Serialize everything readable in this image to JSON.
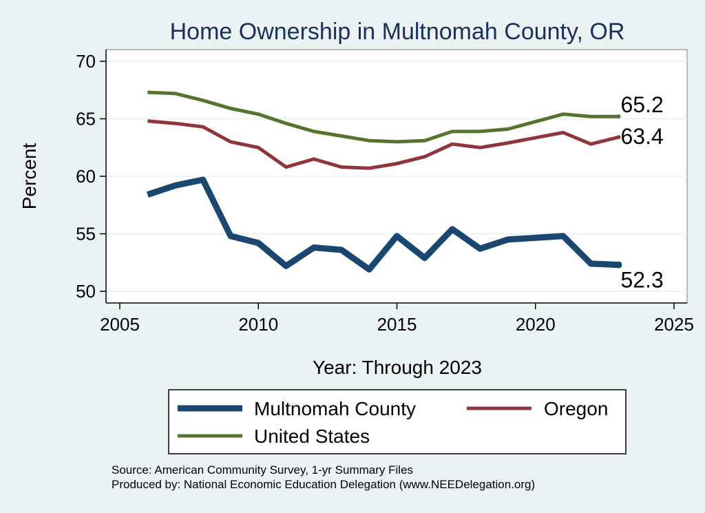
{
  "chart_data": {
    "type": "line",
    "title": "Home Ownership in Multnomah County, OR",
    "xlabel": "Year: Through 2023",
    "ylabel": "Percent",
    "xlim": [
      2005,
      2025
    ],
    "ylim": [
      49.5,
      70.8
    ],
    "xticks": [
      2005,
      2010,
      2015,
      2020,
      2025
    ],
    "yticks": [
      50,
      55,
      60,
      65,
      70
    ],
    "grid": true,
    "legend_position": "bottom",
    "colors": {
      "background": "#eaf2f3",
      "plot_background": "#ffffff",
      "grid": "#eaf2f3",
      "title": "#1a2f59",
      "text": "#000000"
    },
    "series": [
      {
        "name": "Multnomah County",
        "color": "#1a476f",
        "width": 9,
        "x": [
          2006,
          2007,
          2008,
          2009,
          2010,
          2011,
          2012,
          2013,
          2014,
          2015,
          2016,
          2017,
          2018,
          2019,
          2021,
          2022,
          2023
        ],
        "y": [
          58.4,
          59.2,
          59.7,
          54.8,
          54.2,
          52.2,
          53.8,
          53.6,
          51.9,
          54.8,
          52.9,
          55.4,
          53.7,
          54.5,
          54.8,
          52.4,
          52.3
        ],
        "end_label": "52.3"
      },
      {
        "name": "Oregon",
        "color": "#90353b",
        "width": 5,
        "x": [
          2006,
          2007,
          2008,
          2009,
          2010,
          2011,
          2012,
          2013,
          2014,
          2015,
          2016,
          2017,
          2018,
          2019,
          2021,
          2022,
          2023
        ],
        "y": [
          64.8,
          64.6,
          64.3,
          63.0,
          62.5,
          60.8,
          61.5,
          60.8,
          60.7,
          61.1,
          61.7,
          62.8,
          62.5,
          62.9,
          63.8,
          62.8,
          63.4
        ],
        "end_label": "63.4"
      },
      {
        "name": "United States",
        "color": "#55752f",
        "width": 5,
        "x": [
          2006,
          2007,
          2008,
          2009,
          2010,
          2011,
          2012,
          2013,
          2014,
          2015,
          2016,
          2017,
          2018,
          2019,
          2021,
          2022,
          2023
        ],
        "y": [
          67.3,
          67.2,
          66.6,
          65.9,
          65.4,
          64.6,
          63.9,
          63.5,
          63.1,
          63.0,
          63.1,
          63.9,
          63.9,
          64.1,
          65.4,
          65.2,
          65.2
        ],
        "end_label": "65.2"
      }
    ]
  },
  "legend": {
    "items": [
      {
        "label": "Multnomah County",
        "color": "#1a476f",
        "width": 9
      },
      {
        "label": "Oregon",
        "color": "#90353b",
        "width": 5
      },
      {
        "label": "United States",
        "color": "#55752f",
        "width": 5
      }
    ]
  },
  "source": {
    "line1": "Source: American Community Survey, 1-yr Summary Files",
    "line2": "Produced by: National Economic Education Delegation (www.NEEDelegation.org)"
  }
}
